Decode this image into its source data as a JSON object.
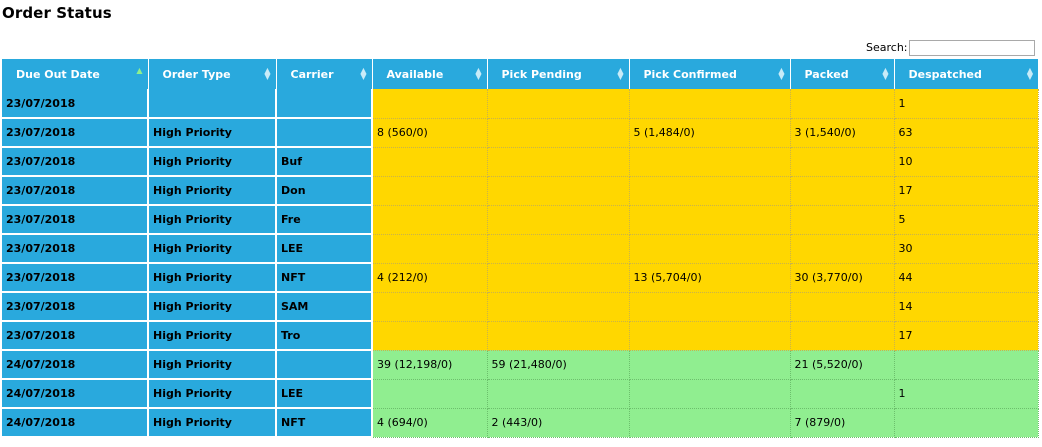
{
  "page": {
    "title": "Order Status"
  },
  "search": {
    "label": "Search:",
    "value": ""
  },
  "columns": [
    "Due Out Date",
    "Order Type",
    "Carrier",
    "Available",
    "Pick Pending",
    "Pick Confirmed",
    "Packed",
    "Despatched"
  ],
  "sort": {
    "column": "Due Out Date",
    "direction": "ascending"
  },
  "colors": {
    "header": "#29a9dd",
    "today_rows": "#ffd700",
    "next_day_rows": "#90ee90"
  },
  "rows": [
    {
      "date": "23/07/2018",
      "type": "",
      "carrier": "",
      "available": "",
      "pick_pending": "",
      "pick_confirmed": "",
      "packed": "",
      "despatched": "1",
      "tone": "yellow"
    },
    {
      "date": "23/07/2018",
      "type": "High Priority",
      "carrier": "",
      "available": "8 (560/0)",
      "pick_pending": "",
      "pick_confirmed": "5 (1,484/0)",
      "packed": "3 (1,540/0)",
      "despatched": "63",
      "tone": "yellow"
    },
    {
      "date": "23/07/2018",
      "type": "High Priority",
      "carrier": "Buf",
      "available": "",
      "pick_pending": "",
      "pick_confirmed": "",
      "packed": "",
      "despatched": "10",
      "tone": "yellow"
    },
    {
      "date": "23/07/2018",
      "type": "High Priority",
      "carrier": "Don",
      "available": "",
      "pick_pending": "",
      "pick_confirmed": "",
      "packed": "",
      "despatched": "17",
      "tone": "yellow"
    },
    {
      "date": "23/07/2018",
      "type": "High Priority",
      "carrier": "Fre",
      "available": "",
      "pick_pending": "",
      "pick_confirmed": "",
      "packed": "",
      "despatched": "5",
      "tone": "yellow"
    },
    {
      "date": "23/07/2018",
      "type": "High Priority",
      "carrier": "LEE",
      "available": "",
      "pick_pending": "",
      "pick_confirmed": "",
      "packed": "",
      "despatched": "30",
      "tone": "yellow"
    },
    {
      "date": "23/07/2018",
      "type": "High Priority",
      "carrier": "NFT",
      "available": "4 (212/0)",
      "pick_pending": "",
      "pick_confirmed": "13 (5,704/0)",
      "packed": "30 (3,770/0)",
      "despatched": "44",
      "tone": "yellow"
    },
    {
      "date": "23/07/2018",
      "type": "High Priority",
      "carrier": "SAM",
      "available": "",
      "pick_pending": "",
      "pick_confirmed": "",
      "packed": "",
      "despatched": "14",
      "tone": "yellow"
    },
    {
      "date": "23/07/2018",
      "type": "High Priority",
      "carrier": "Tro",
      "available": "",
      "pick_pending": "",
      "pick_confirmed": "",
      "packed": "",
      "despatched": "17",
      "tone": "yellow"
    },
    {
      "date": "24/07/2018",
      "type": "High Priority",
      "carrier": "",
      "available": "39 (12,198/0)",
      "pick_pending": "59 (21,480/0)",
      "pick_confirmed": "",
      "packed": "21 (5,520/0)",
      "despatched": "",
      "tone": "green"
    },
    {
      "date": "24/07/2018",
      "type": "High Priority",
      "carrier": "LEE",
      "available": "",
      "pick_pending": "",
      "pick_confirmed": "",
      "packed": "",
      "despatched": "1",
      "tone": "green"
    },
    {
      "date": "24/07/2018",
      "type": "High Priority",
      "carrier": "NFT",
      "available": "4 (694/0)",
      "pick_pending": "2 (443/0)",
      "pick_confirmed": "",
      "packed": "7 (879/0)",
      "despatched": "",
      "tone": "green"
    }
  ]
}
